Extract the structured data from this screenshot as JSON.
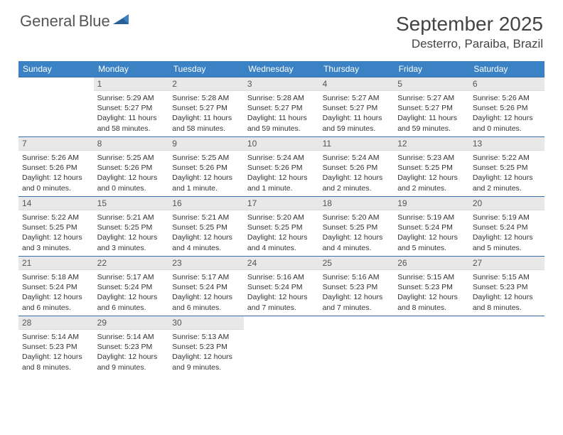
{
  "logo": {
    "text1": "General",
    "text2": "Blue"
  },
  "title": "September 2025",
  "location": "Desterro, Paraiba, Brazil",
  "colors": {
    "header_bg": "#3b82c4",
    "header_fg": "#ffffff",
    "daynum_bg": "#e8e8e8",
    "row_border": "#3b6ea8",
    "text": "#333333",
    "logo_gray": "#555555",
    "logo_blue": "#3b82c4"
  },
  "typography": {
    "month_title_fontsize": 28,
    "location_fontsize": 17,
    "day_header_fontsize": 12,
    "daynum_fontsize": 12,
    "body_fontsize": 10.5
  },
  "day_headers": [
    "Sunday",
    "Monday",
    "Tuesday",
    "Wednesday",
    "Thursday",
    "Friday",
    "Saturday"
  ],
  "weeks": [
    [
      null,
      {
        "n": "1",
        "sr": "5:29 AM",
        "ss": "5:27 PM",
        "dl": "11 hours and 58 minutes."
      },
      {
        "n": "2",
        "sr": "5:28 AM",
        "ss": "5:27 PM",
        "dl": "11 hours and 58 minutes."
      },
      {
        "n": "3",
        "sr": "5:28 AM",
        "ss": "5:27 PM",
        "dl": "11 hours and 59 minutes."
      },
      {
        "n": "4",
        "sr": "5:27 AM",
        "ss": "5:27 PM",
        "dl": "11 hours and 59 minutes."
      },
      {
        "n": "5",
        "sr": "5:27 AM",
        "ss": "5:27 PM",
        "dl": "11 hours and 59 minutes."
      },
      {
        "n": "6",
        "sr": "5:26 AM",
        "ss": "5:26 PM",
        "dl": "12 hours and 0 minutes."
      }
    ],
    [
      {
        "n": "7",
        "sr": "5:26 AM",
        "ss": "5:26 PM",
        "dl": "12 hours and 0 minutes."
      },
      {
        "n": "8",
        "sr": "5:25 AM",
        "ss": "5:26 PM",
        "dl": "12 hours and 0 minutes."
      },
      {
        "n": "9",
        "sr": "5:25 AM",
        "ss": "5:26 PM",
        "dl": "12 hours and 1 minute."
      },
      {
        "n": "10",
        "sr": "5:24 AM",
        "ss": "5:26 PM",
        "dl": "12 hours and 1 minute."
      },
      {
        "n": "11",
        "sr": "5:24 AM",
        "ss": "5:26 PM",
        "dl": "12 hours and 2 minutes."
      },
      {
        "n": "12",
        "sr": "5:23 AM",
        "ss": "5:25 PM",
        "dl": "12 hours and 2 minutes."
      },
      {
        "n": "13",
        "sr": "5:22 AM",
        "ss": "5:25 PM",
        "dl": "12 hours and 2 minutes."
      }
    ],
    [
      {
        "n": "14",
        "sr": "5:22 AM",
        "ss": "5:25 PM",
        "dl": "12 hours and 3 minutes."
      },
      {
        "n": "15",
        "sr": "5:21 AM",
        "ss": "5:25 PM",
        "dl": "12 hours and 3 minutes."
      },
      {
        "n": "16",
        "sr": "5:21 AM",
        "ss": "5:25 PM",
        "dl": "12 hours and 4 minutes."
      },
      {
        "n": "17",
        "sr": "5:20 AM",
        "ss": "5:25 PM",
        "dl": "12 hours and 4 minutes."
      },
      {
        "n": "18",
        "sr": "5:20 AM",
        "ss": "5:25 PM",
        "dl": "12 hours and 4 minutes."
      },
      {
        "n": "19",
        "sr": "5:19 AM",
        "ss": "5:24 PM",
        "dl": "12 hours and 5 minutes."
      },
      {
        "n": "20",
        "sr": "5:19 AM",
        "ss": "5:24 PM",
        "dl": "12 hours and 5 minutes."
      }
    ],
    [
      {
        "n": "21",
        "sr": "5:18 AM",
        "ss": "5:24 PM",
        "dl": "12 hours and 6 minutes."
      },
      {
        "n": "22",
        "sr": "5:17 AM",
        "ss": "5:24 PM",
        "dl": "12 hours and 6 minutes."
      },
      {
        "n": "23",
        "sr": "5:17 AM",
        "ss": "5:24 PM",
        "dl": "12 hours and 6 minutes."
      },
      {
        "n": "24",
        "sr": "5:16 AM",
        "ss": "5:24 PM",
        "dl": "12 hours and 7 minutes."
      },
      {
        "n": "25",
        "sr": "5:16 AM",
        "ss": "5:23 PM",
        "dl": "12 hours and 7 minutes."
      },
      {
        "n": "26",
        "sr": "5:15 AM",
        "ss": "5:23 PM",
        "dl": "12 hours and 8 minutes."
      },
      {
        "n": "27",
        "sr": "5:15 AM",
        "ss": "5:23 PM",
        "dl": "12 hours and 8 minutes."
      }
    ],
    [
      {
        "n": "28",
        "sr": "5:14 AM",
        "ss": "5:23 PM",
        "dl": "12 hours and 8 minutes."
      },
      {
        "n": "29",
        "sr": "5:14 AM",
        "ss": "5:23 PM",
        "dl": "12 hours and 9 minutes."
      },
      {
        "n": "30",
        "sr": "5:13 AM",
        "ss": "5:23 PM",
        "dl": "12 hours and 9 minutes."
      },
      null,
      null,
      null,
      null
    ]
  ],
  "labels": {
    "sunrise": "Sunrise:",
    "sunset": "Sunset:",
    "daylight": "Daylight:"
  }
}
